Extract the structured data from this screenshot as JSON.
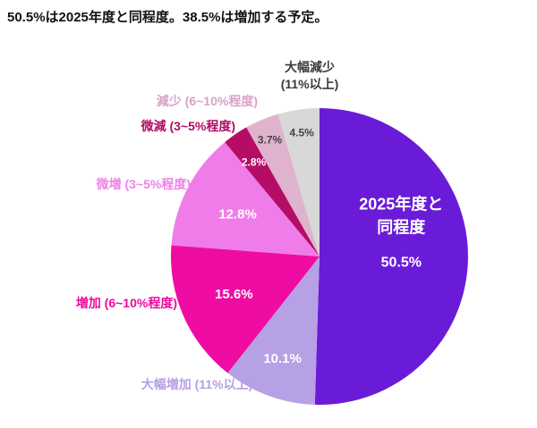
{
  "title": "50.5%は2025年度と同程度。38.5%は増加する予定。",
  "chart_data": {
    "type": "pie",
    "title": "50.5%は2025年度と同程度。38.5%は増加する予定。",
    "legend_position": "outside-labels",
    "total": 100.0,
    "slices": [
      {
        "key": "same-as-2025",
        "label": "2025年度と同程度",
        "inner_lines": [
          "2025年度と",
          "同程度"
        ],
        "value": 50.5,
        "percent_text": "50.5%",
        "color": "#6a1bd8",
        "pct_color": "#ffffff",
        "label_color": "#6a1bd8",
        "pct_r": 0.55
      },
      {
        "key": "large-increase",
        "label": "大幅増加 (11%以上)",
        "value": 10.1,
        "percent_text": "10.1%",
        "color": "#b6a1e4",
        "pct_color": "#ffffff",
        "label_color": "#b49fe2",
        "pct_r": 0.73
      },
      {
        "key": "increase",
        "label": "増加 (6~10%程度)",
        "value": 15.6,
        "percent_text": "15.6%",
        "color": "#ee0ca3",
        "pct_color": "#ffffff",
        "label_color": "#ec0ba0",
        "pct_r": 0.63
      },
      {
        "key": "slight-increase",
        "label": "微増 (3~5%程度)",
        "value": 12.8,
        "percent_text": "12.8%",
        "color": "#f07cea",
        "pct_color": "#ffffff",
        "label_color": "#ef82ea",
        "pct_r": 0.62
      },
      {
        "key": "slight-decrease",
        "label": "微減 (3~5%程度)",
        "value": 2.8,
        "percent_text": "2.8%",
        "color": "#b50d66",
        "pct_color": "#ffffff",
        "label_color": "#b10b67",
        "pct_r": 0.78
      },
      {
        "key": "decrease",
        "label": "減少 (6~10%程度)",
        "value": 3.7,
        "percent_text": "3.7%",
        "color": "#dfb3cd",
        "pct_color": "#444444",
        "label_color": "#d8a3c6",
        "pct_r": 0.86
      },
      {
        "key": "large-decrease",
        "label": "大幅減少\n(11%以上)",
        "value": 4.5,
        "percent_text": "4.5%",
        "color": "#d8d8d8",
        "pct_color": "#444444",
        "label_color": "#3a3a3a",
        "pct_r": 0.85
      }
    ]
  }
}
